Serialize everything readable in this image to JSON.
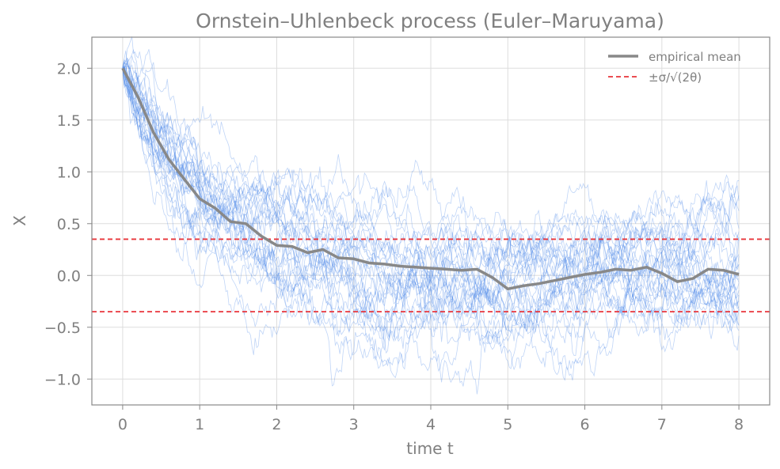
{
  "chart_data": {
    "type": "line",
    "title": "Ornstein–Uhlenbeck process (Euler–Maruyama)",
    "xlabel": "time t",
    "ylabel": "X",
    "xlim": [
      -0.4,
      8.4
    ],
    "ylim": [
      -1.25,
      2.3
    ],
    "xticks": [
      0,
      1,
      2,
      3,
      4,
      5,
      6,
      7,
      8
    ],
    "xtick_labels": [
      "0",
      "1",
      "2",
      "3",
      "4",
      "5",
      "6",
      "7",
      "8"
    ],
    "yticks": [
      -1.0,
      -0.5,
      0.0,
      0.5,
      1.0,
      1.5,
      2.0
    ],
    "ytick_labels": [
      "−1.0",
      "−0.5",
      "0.0",
      "0.5",
      "1.0",
      "1.5",
      "2.0"
    ],
    "grid": true,
    "legend_position": "top-right",
    "colors": {
      "paths": "#4a86e8",
      "mean": "#888888",
      "band": "#e8343a",
      "text": "#808080",
      "grid": "#dddddd",
      "axes": "#888888"
    },
    "process": {
      "x0": 2.0,
      "mean_reversion_level": 0.0,
      "t_end": 8.0,
      "num_paths": 30,
      "band_value": 0.35
    },
    "series": [
      {
        "name": "empirical mean",
        "x": [
          0,
          0.2,
          0.4,
          0.6,
          0.8,
          1.0,
          1.2,
          1.4,
          1.6,
          1.8,
          2.0,
          2.2,
          2.4,
          2.6,
          2.8,
          3.0,
          3.2,
          3.4,
          3.6,
          3.8,
          4.0,
          4.2,
          4.4,
          4.6,
          4.8,
          5.0,
          5.2,
          5.4,
          5.6,
          5.8,
          6.0,
          6.2,
          6.4,
          6.6,
          6.8,
          7.0,
          7.2,
          7.4,
          7.6,
          7.8,
          8.0
        ],
        "y": [
          2.0,
          1.72,
          1.38,
          1.12,
          0.93,
          0.74,
          0.65,
          0.52,
          0.5,
          0.38,
          0.29,
          0.28,
          0.22,
          0.25,
          0.17,
          0.16,
          0.12,
          0.11,
          0.09,
          0.08,
          0.07,
          0.06,
          0.05,
          0.06,
          -0.02,
          -0.13,
          -0.1,
          -0.08,
          -0.05,
          -0.02,
          0.01,
          0.03,
          0.06,
          0.05,
          0.08,
          0.02,
          -0.06,
          -0.03,
          0.06,
          0.05,
          0.01
        ]
      },
      {
        "name": "±σ/√(2θ)",
        "values": [
          0.35,
          -0.35
        ]
      }
    ]
  }
}
